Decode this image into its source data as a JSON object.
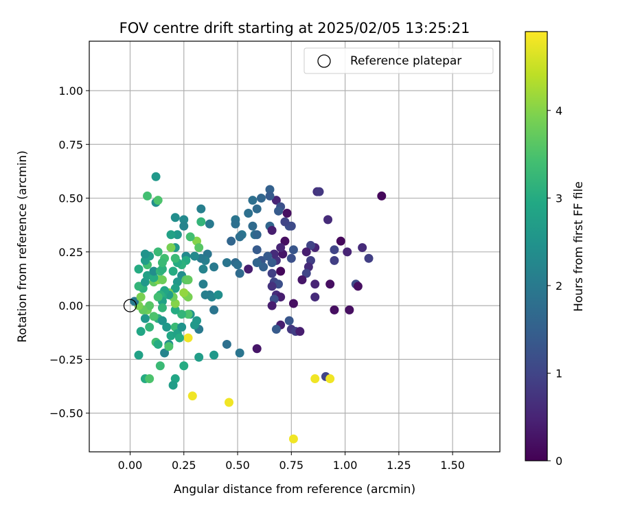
{
  "chart_data": {
    "type": "scatter",
    "title": "FOV centre drift starting at 2025/02/05 13:25:21",
    "xlabel": "Angular distance from reference (arcmin)",
    "ylabel": "Rotation from reference (arcmin)",
    "xlim": [
      -0.19,
      1.72
    ],
    "ylim": [
      -0.68,
      1.23
    ],
    "xticks": [
      "0.00",
      "0.25",
      "0.50",
      "0.75",
      "1.00",
      "1.25",
      "1.50"
    ],
    "xtick_values": [
      0,
      0.25,
      0.5,
      0.75,
      1.0,
      1.25,
      1.5
    ],
    "yticks": [
      "−0.50",
      "−0.25",
      "0.00",
      "0.25",
      "0.50",
      "0.75",
      "1.00"
    ],
    "ytick_values": [
      -0.5,
      -0.25,
      0,
      0.25,
      0.5,
      0.75,
      1.0
    ],
    "grid": true,
    "legend": {
      "position": "top-right",
      "entries": [
        "Reference platepar"
      ]
    },
    "reference_point": {
      "x": 0,
      "y": 0
    },
    "colorbar": {
      "label": "Hours from first FF file",
      "min": 0,
      "max": 4.9,
      "ticks": [
        "0",
        "1",
        "2",
        "3",
        "4"
      ],
      "tick_values": [
        0,
        1,
        2,
        3,
        4
      ],
      "colormap": "viridis"
    },
    "points": [
      {
        "x": 1.17,
        "y": 0.51,
        "c": 0.1
      },
      {
        "x": 0.68,
        "y": 0.49,
        "c": 0.5
      },
      {
        "x": 0.73,
        "y": 0.43,
        "c": 0.2
      },
      {
        "x": 0.87,
        "y": 0.53,
        "c": 0.7
      },
      {
        "x": 0.88,
        "y": 0.53,
        "c": 0.8
      },
      {
        "x": 0.92,
        "y": 0.4,
        "c": 0.6
      },
      {
        "x": 0.98,
        "y": 0.3,
        "c": 0.1
      },
      {
        "x": 1.01,
        "y": 0.25,
        "c": 0.5
      },
      {
        "x": 1.08,
        "y": 0.27,
        "c": 0.6
      },
      {
        "x": 1.11,
        "y": 0.22,
        "c": 0.9
      },
      {
        "x": 1.05,
        "y": 0.1,
        "c": 1.1
      },
      {
        "x": 1.06,
        "y": 0.09,
        "c": 0.2
      },
      {
        "x": 0.93,
        "y": 0.1,
        "c": 0.2
      },
      {
        "x": 0.95,
        "y": -0.02,
        "c": 0.2
      },
      {
        "x": 1.02,
        "y": -0.02,
        "c": 0.2
      },
      {
        "x": 0.91,
        "y": -0.33,
        "c": 1.0
      },
      {
        "x": 0.86,
        "y": -0.34,
        "c": 4.8
      },
      {
        "x": 0.93,
        "y": -0.34,
        "c": 4.8
      },
      {
        "x": 0.76,
        "y": -0.62,
        "c": 4.8
      },
      {
        "x": 0.46,
        "y": -0.45,
        "c": 4.8
      },
      {
        "x": 0.29,
        "y": -0.42,
        "c": 4.8
      },
      {
        "x": 0.27,
        "y": -0.15,
        "c": 4.8
      },
      {
        "x": 0.95,
        "y": 0.21,
        "c": 0.9
      },
      {
        "x": 0.95,
        "y": 0.26,
        "c": 1.0
      },
      {
        "x": 0.86,
        "y": 0.27,
        "c": 0.5
      },
      {
        "x": 0.84,
        "y": 0.28,
        "c": 1.0
      },
      {
        "x": 0.82,
        "y": 0.25,
        "c": 0.4
      },
      {
        "x": 0.84,
        "y": 0.21,
        "c": 0.9
      },
      {
        "x": 0.83,
        "y": 0.18,
        "c": 0.6
      },
      {
        "x": 0.82,
        "y": 0.15,
        "c": 1.0
      },
      {
        "x": 0.86,
        "y": 0.1,
        "c": 0.5
      },
      {
        "x": 0.86,
        "y": 0.04,
        "c": 0.6
      },
      {
        "x": 0.8,
        "y": 0.12,
        "c": 0.3
      },
      {
        "x": 0.76,
        "y": 0.26,
        "c": 1.3
      },
      {
        "x": 0.75,
        "y": 0.22,
        "c": 1.2
      },
      {
        "x": 0.72,
        "y": 0.3,
        "c": 0.2
      },
      {
        "x": 0.71,
        "y": 0.24,
        "c": 0.3
      },
      {
        "x": 0.7,
        "y": 0.27,
        "c": 0.5
      },
      {
        "x": 0.68,
        "y": 0.21,
        "c": 0.7
      },
      {
        "x": 0.67,
        "y": 0.24,
        "c": 0.6
      },
      {
        "x": 0.66,
        "y": 0.2,
        "c": 1.4
      },
      {
        "x": 0.66,
        "y": 0.15,
        "c": 0.9
      },
      {
        "x": 0.67,
        "y": 0.11,
        "c": 1.0
      },
      {
        "x": 0.7,
        "y": 0.16,
        "c": 0.1
      },
      {
        "x": 0.69,
        "y": 0.1,
        "c": 1.2
      },
      {
        "x": 0.66,
        "y": 0.09,
        "c": 0.7
      },
      {
        "x": 0.68,
        "y": 0.05,
        "c": 0.6
      },
      {
        "x": 0.7,
        "y": 0.04,
        "c": 0.4
      },
      {
        "x": 0.67,
        "y": 0.03,
        "c": 1.2
      },
      {
        "x": 0.66,
        "y": 0.0,
        "c": 0.4
      },
      {
        "x": 0.76,
        "y": 0.01,
        "c": 0.2
      },
      {
        "x": 0.74,
        "y": -0.07,
        "c": 1.3
      },
      {
        "x": 0.7,
        "y": -0.09,
        "c": 0.4
      },
      {
        "x": 0.68,
        "y": -0.11,
        "c": 1.4
      },
      {
        "x": 0.75,
        "y": -0.11,
        "c": 0.8
      },
      {
        "x": 0.77,
        "y": -0.12,
        "c": 0.9
      },
      {
        "x": 0.79,
        "y": -0.12,
        "c": 0.4
      },
      {
        "x": 0.74,
        "y": 0.37,
        "c": 1.2
      },
      {
        "x": 0.75,
        "y": 0.37,
        "c": 1.1
      },
      {
        "x": 0.72,
        "y": 0.39,
        "c": 1.0
      },
      {
        "x": 0.7,
        "y": 0.46,
        "c": 1.2
      },
      {
        "x": 0.69,
        "y": 0.44,
        "c": 1.4
      },
      {
        "x": 0.65,
        "y": 0.54,
        "c": 1.5
      },
      {
        "x": 0.65,
        "y": 0.51,
        "c": 1.4
      },
      {
        "x": 0.65,
        "y": 0.37,
        "c": 1.6
      },
      {
        "x": 0.66,
        "y": 0.35,
        "c": 0.4
      },
      {
        "x": 0.61,
        "y": 0.5,
        "c": 1.6
      },
      {
        "x": 0.57,
        "y": 0.49,
        "c": 1.8
      },
      {
        "x": 0.59,
        "y": 0.45,
        "c": 1.7
      },
      {
        "x": 0.55,
        "y": 0.43,
        "c": 1.8
      },
      {
        "x": 0.57,
        "y": 0.37,
        "c": 1.7
      },
      {
        "x": 0.58,
        "y": 0.33,
        "c": 1.8
      },
      {
        "x": 0.59,
        "y": 0.33,
        "c": 1.6
      },
      {
        "x": 0.52,
        "y": 0.33,
        "c": 1.9
      },
      {
        "x": 0.51,
        "y": 0.32,
        "c": 1.8
      },
      {
        "x": 0.47,
        "y": 0.3,
        "c": 1.6
      },
      {
        "x": 0.49,
        "y": 0.4,
        "c": 1.9
      },
      {
        "x": 0.49,
        "y": 0.38,
        "c": 1.8
      },
      {
        "x": 0.59,
        "y": 0.26,
        "c": 1.4
      },
      {
        "x": 0.61,
        "y": 0.21,
        "c": 1.3
      },
      {
        "x": 0.62,
        "y": 0.18,
        "c": 1.5
      },
      {
        "x": 0.59,
        "y": 0.2,
        "c": 1.6
      },
      {
        "x": 0.64,
        "y": 0.23,
        "c": 1.4
      },
      {
        "x": 0.55,
        "y": 0.17,
        "c": 0.4
      },
      {
        "x": 0.49,
        "y": 0.2,
        "c": 1.7
      },
      {
        "x": 0.5,
        "y": 0.19,
        "c": 1.8
      },
      {
        "x": 0.51,
        "y": 0.15,
        "c": 1.7
      },
      {
        "x": 0.45,
        "y": 0.2,
        "c": 1.9
      },
      {
        "x": 0.59,
        "y": -0.2,
        "c": 0.3
      },
      {
        "x": 0.51,
        "y": -0.22,
        "c": 1.9
      },
      {
        "x": 0.45,
        "y": -0.18,
        "c": 1.8
      },
      {
        "x": 0.39,
        "y": 0.18,
        "c": 2.0
      },
      {
        "x": 0.36,
        "y": 0.24,
        "c": 1.9
      },
      {
        "x": 0.35,
        "y": 0.21,
        "c": 2.1
      },
      {
        "x": 0.34,
        "y": 0.17,
        "c": 2.2
      },
      {
        "x": 0.33,
        "y": 0.22,
        "c": 2.0
      },
      {
        "x": 0.3,
        "y": 0.23,
        "c": 2.3
      },
      {
        "x": 0.34,
        "y": 0.1,
        "c": 2.1
      },
      {
        "x": 0.37,
        "y": 0.05,
        "c": 2.0
      },
      {
        "x": 0.38,
        "y": 0.04,
        "c": 2.2
      },
      {
        "x": 0.41,
        "y": 0.05,
        "c": 2.4
      },
      {
        "x": 0.35,
        "y": 0.05,
        "c": 2.1
      },
      {
        "x": 0.39,
        "y": -0.02,
        "c": 1.9
      },
      {
        "x": 0.32,
        "y": -0.11,
        "c": 2.0
      },
      {
        "x": 0.31,
        "y": -0.07,
        "c": 2.6
      },
      {
        "x": 0.28,
        "y": -0.04,
        "c": 2.5
      },
      {
        "x": 0.3,
        "y": -0.09,
        "c": 2.6
      },
      {
        "x": 0.39,
        "y": -0.23,
        "c": 2.6
      },
      {
        "x": 0.32,
        "y": -0.24,
        "c": 2.7
      },
      {
        "x": 0.37,
        "y": 0.38,
        "c": 2.0
      },
      {
        "x": 0.33,
        "y": 0.45,
        "c": 2.1
      },
      {
        "x": 0.33,
        "y": 0.39,
        "c": 3.2
      },
      {
        "x": 0.31,
        "y": 0.3,
        "c": 4.0
      },
      {
        "x": 0.32,
        "y": 0.27,
        "c": 3.6
      },
      {
        "x": 0.28,
        "y": 0.32,
        "c": 3.4
      },
      {
        "x": 0.25,
        "y": 0.4,
        "c": 2.3
      },
      {
        "x": 0.25,
        "y": 0.37,
        "c": 2.2
      },
      {
        "x": 0.21,
        "y": 0.41,
        "c": 2.4
      },
      {
        "x": 0.22,
        "y": 0.33,
        "c": 2.6
      },
      {
        "x": 0.19,
        "y": 0.33,
        "c": 2.8
      },
      {
        "x": 0.21,
        "y": 0.27,
        "c": 2.6
      },
      {
        "x": 0.19,
        "y": 0.27,
        "c": 3.9
      },
      {
        "x": 0.26,
        "y": 0.23,
        "c": 2.3
      },
      {
        "x": 0.26,
        "y": 0.21,
        "c": 3.0
      },
      {
        "x": 0.24,
        "y": 0.19,
        "c": 3.1
      },
      {
        "x": 0.22,
        "y": 0.2,
        "c": 3.0
      },
      {
        "x": 0.21,
        "y": 0.22,
        "c": 3.3
      },
      {
        "x": 0.2,
        "y": 0.16,
        "c": 3.0
      },
      {
        "x": 0.24,
        "y": 0.14,
        "c": 2.4
      },
      {
        "x": 0.22,
        "y": 0.11,
        "c": 2.6
      },
      {
        "x": 0.21,
        "y": 0.08,
        "c": 2.8
      },
      {
        "x": 0.26,
        "y": 0.12,
        "c": 3.6
      },
      {
        "x": 0.27,
        "y": 0.12,
        "c": 3.7
      },
      {
        "x": 0.26,
        "y": 0.05,
        "c": 3.8
      },
      {
        "x": 0.27,
        "y": 0.04,
        "c": 3.9
      },
      {
        "x": 0.25,
        "y": 0.06,
        "c": 4.1
      },
      {
        "x": 0.27,
        "y": -0.04,
        "c": 3.5
      },
      {
        "x": 0.24,
        "y": -0.04,
        "c": 3.2
      },
      {
        "x": 0.21,
        "y": -0.02,
        "c": 3.0
      },
      {
        "x": 0.21,
        "y": 0.01,
        "c": 4.0
      },
      {
        "x": 0.2,
        "y": 0.04,
        "c": 3.8
      },
      {
        "x": 0.18,
        "y": 0.06,
        "c": 3.9
      },
      {
        "x": 0.18,
        "y": 0.05,
        "c": 2.7
      },
      {
        "x": 0.16,
        "y": 0.07,
        "c": 2.9
      },
      {
        "x": 0.15,
        "y": 0.04,
        "c": 3.0
      },
      {
        "x": 0.14,
        "y": 0.05,
        "c": 3.1
      },
      {
        "x": 0.15,
        "y": 0.02,
        "c": 2.8
      },
      {
        "x": 0.13,
        "y": 0.04,
        "c": 3.4
      },
      {
        "x": 0.15,
        "y": -0.01,
        "c": 3.2
      },
      {
        "x": 0.13,
        "y": -0.06,
        "c": 3.1
      },
      {
        "x": 0.11,
        "y": -0.05,
        "c": 3.5
      },
      {
        "x": 0.15,
        "y": -0.07,
        "c": 2.5
      },
      {
        "x": 0.17,
        "y": -0.1,
        "c": 2.6
      },
      {
        "x": 0.19,
        "y": -0.14,
        "c": 2.9
      },
      {
        "x": 0.21,
        "y": -0.1,
        "c": 3.3
      },
      {
        "x": 0.22,
        "y": -0.13,
        "c": 2.8
      },
      {
        "x": 0.23,
        "y": -0.15,
        "c": 3.0
      },
      {
        "x": 0.24,
        "y": -0.1,
        "c": 2.5
      },
      {
        "x": 0.18,
        "y": -0.18,
        "c": 2.4
      },
      {
        "x": 0.16,
        "y": -0.22,
        "c": 2.2
      },
      {
        "x": 0.18,
        "y": -0.19,
        "c": 3.5
      },
      {
        "x": 0.12,
        "y": -0.17,
        "c": 3.4
      },
      {
        "x": 0.13,
        "y": -0.18,
        "c": 3.0
      },
      {
        "x": 0.14,
        "y": -0.28,
        "c": 3.3
      },
      {
        "x": 0.04,
        "y": -0.23,
        "c": 2.8
      },
      {
        "x": 0.25,
        "y": -0.28,
        "c": 3.0
      },
      {
        "x": 0.07,
        "y": -0.34,
        "c": 3.0
      },
      {
        "x": 0.09,
        "y": -0.34,
        "c": 3.5
      },
      {
        "x": 0.21,
        "y": -0.34,
        "c": 2.9
      },
      {
        "x": 0.2,
        "y": -0.37,
        "c": 2.7
      },
      {
        "x": 0.05,
        "y": -0.12,
        "c": 2.9
      },
      {
        "x": 0.09,
        "y": -0.1,
        "c": 3.2
      },
      {
        "x": 0.07,
        "y": -0.06,
        "c": 2.6
      },
      {
        "x": 0.08,
        "y": -0.02,
        "c": 3.8
      },
      {
        "x": 0.09,
        "y": 0.0,
        "c": 3.6
      },
      {
        "x": 0.06,
        "y": -0.02,
        "c": 3.7
      },
      {
        "x": 0.04,
        "y": 0.0,
        "c": 3.9
      },
      {
        "x": 0.02,
        "y": 0.02,
        "c": 2.0
      },
      {
        "x": 0.05,
        "y": 0.04,
        "c": 3.9
      },
      {
        "x": 0.06,
        "y": 0.08,
        "c": 3.1
      },
      {
        "x": 0.04,
        "y": 0.09,
        "c": 3.2
      },
      {
        "x": 0.07,
        "y": 0.11,
        "c": 2.6
      },
      {
        "x": 0.08,
        "y": 0.14,
        "c": 2.8
      },
      {
        "x": 0.11,
        "y": 0.11,
        "c": 3.7
      },
      {
        "x": 0.13,
        "y": 0.12,
        "c": 4.0
      },
      {
        "x": 0.15,
        "y": 0.12,
        "c": 3.8
      },
      {
        "x": 0.11,
        "y": 0.13,
        "c": 3.0
      },
      {
        "x": 0.04,
        "y": 0.17,
        "c": 3.0
      },
      {
        "x": 0.08,
        "y": 0.19,
        "c": 3.4
      },
      {
        "x": 0.07,
        "y": 0.21,
        "c": 2.7
      },
      {
        "x": 0.11,
        "y": 0.16,
        "c": 2.4
      },
      {
        "x": 0.14,
        "y": 0.16,
        "c": 3.2
      },
      {
        "x": 0.15,
        "y": 0.17,
        "c": 3.1
      },
      {
        "x": 0.16,
        "y": 0.22,
        "c": 3.4
      },
      {
        "x": 0.15,
        "y": 0.2,
        "c": 3.3
      },
      {
        "x": 0.13,
        "y": 0.25,
        "c": 3.3
      },
      {
        "x": 0.09,
        "y": 0.23,
        "c": 2.7
      },
      {
        "x": 0.07,
        "y": 0.24,
        "c": 2.5
      },
      {
        "x": 0.12,
        "y": 0.48,
        "c": 2.4
      },
      {
        "x": 0.13,
        "y": 0.49,
        "c": 3.5
      },
      {
        "x": 0.08,
        "y": 0.51,
        "c": 3.4
      },
      {
        "x": 0.12,
        "y": 0.6,
        "c": 2.6
      }
    ]
  }
}
